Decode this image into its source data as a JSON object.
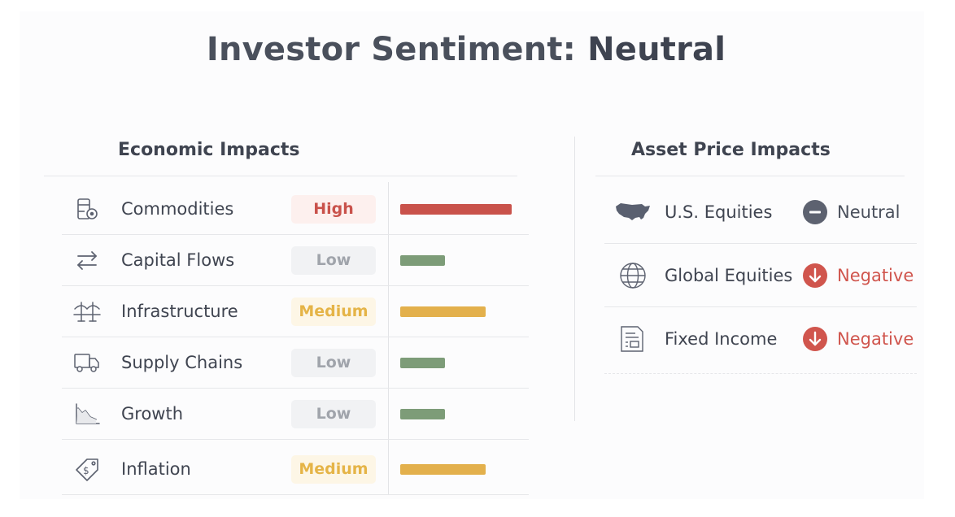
{
  "title": {
    "prefix": "Investor Sentiment: ",
    "value": "Neutral"
  },
  "economic": {
    "heading": "Economic Impacts",
    "rows": [
      {
        "icon": "commodities-icon",
        "label": "Commodities",
        "level": "High",
        "fill": 1.0,
        "color": "#c9524b"
      },
      {
        "icon": "capital-flows-icon",
        "label": "Capital Flows",
        "level": "Low",
        "fill": 0.4,
        "color": "#7d9c78"
      },
      {
        "icon": "infrastructure-icon",
        "label": "Infrastructure",
        "level": "Medium",
        "fill": 0.77,
        "color": "#e3b04c"
      },
      {
        "icon": "supply-chains-icon",
        "label": "Supply Chains",
        "level": "Low",
        "fill": 0.4,
        "color": "#7d9c78"
      },
      {
        "icon": "growth-icon",
        "label": "Growth",
        "level": "Low",
        "fill": 0.4,
        "color": "#7d9c78"
      },
      {
        "icon": "inflation-icon",
        "label": "Inflation",
        "level": "Medium",
        "fill": 0.77,
        "color": "#e3b04c"
      }
    ]
  },
  "asset": {
    "heading": "Asset Price Impacts",
    "rows": [
      {
        "icon": "us-map-icon",
        "label": "U.S. Equities",
        "status": "Neutral",
        "status_icon": "minus-circle-icon"
      },
      {
        "icon": "globe-icon",
        "label": "Global Equities",
        "status": "Negative",
        "status_icon": "arrow-down-circle-icon"
      },
      {
        "icon": "document-icon",
        "label": "Fixed Income",
        "status": "Negative",
        "status_icon": "arrow-down-circle-icon"
      }
    ]
  },
  "colors": {
    "high": "#c9524b",
    "low": "#7d9c78",
    "medium": "#e3b04c",
    "neutral": "#5d6270",
    "negative": "#d0554d"
  }
}
